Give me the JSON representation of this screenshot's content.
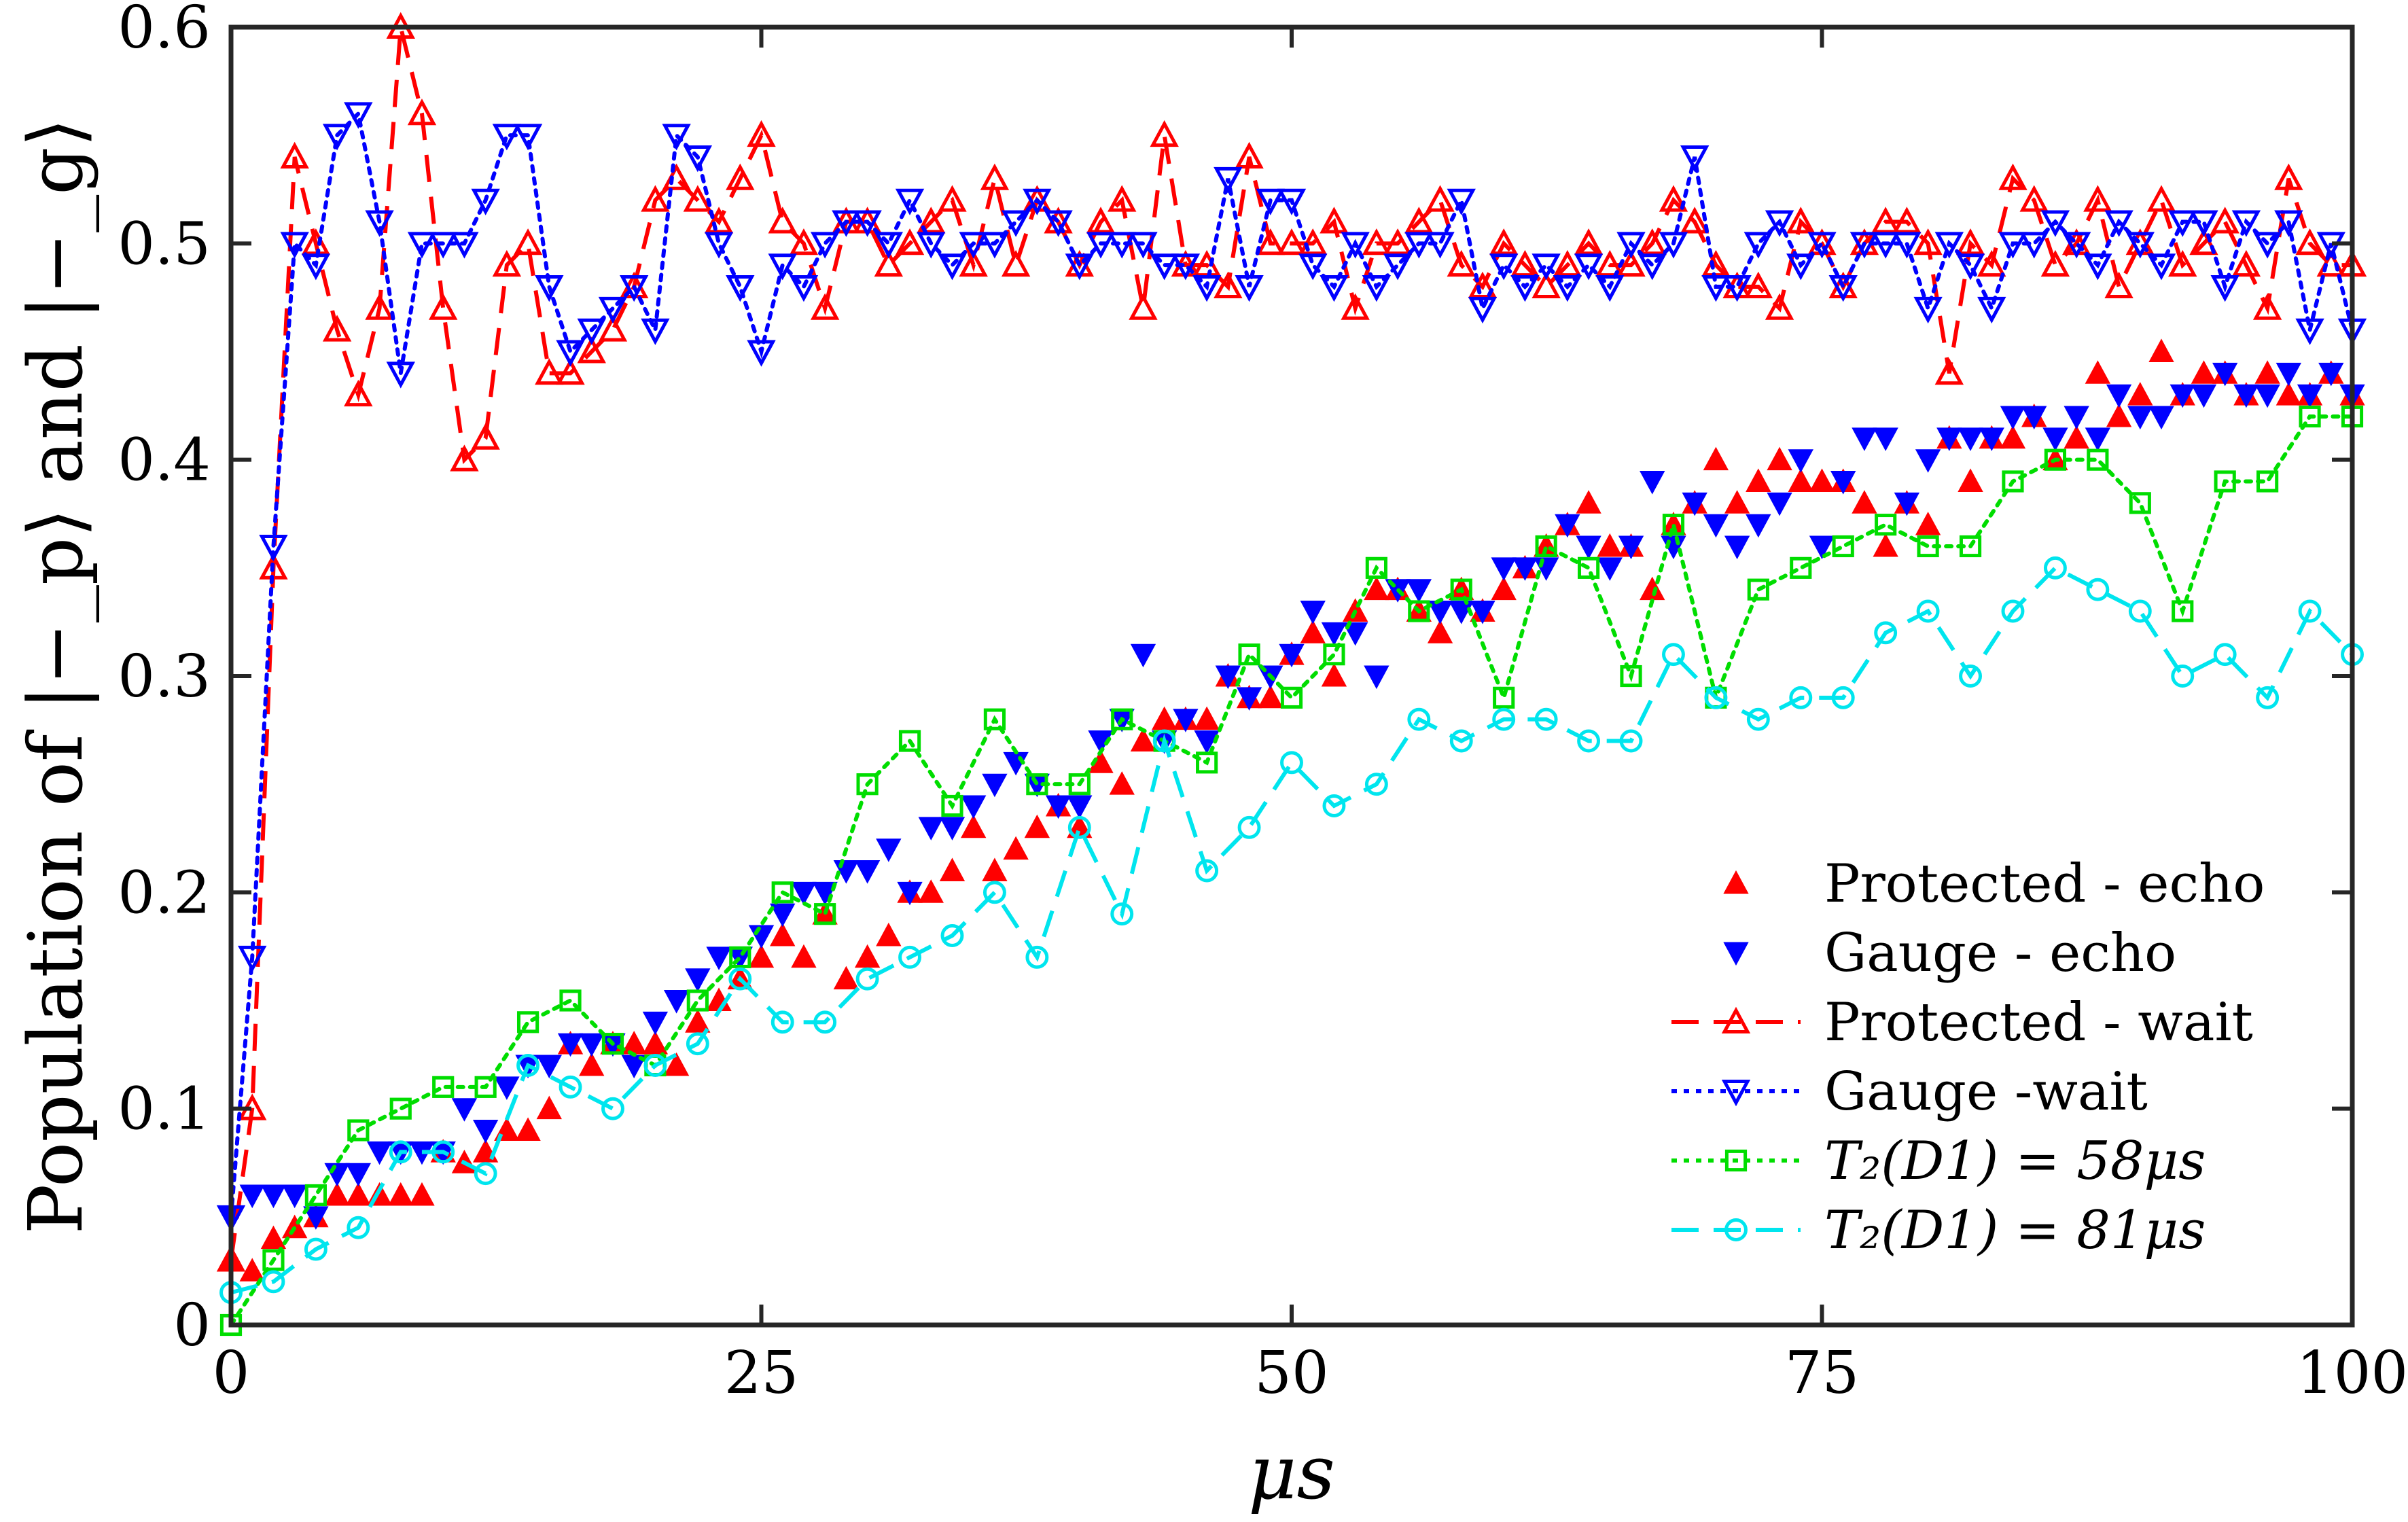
{
  "chart_data": {
    "type": "scatter",
    "xlabel": "μs",
    "ylabel": "Population of |−_p⟩ and |−_g⟩",
    "xlim": [
      0,
      100
    ],
    "ylim": [
      0,
      0.6
    ],
    "xticks": [
      0,
      25,
      50,
      75,
      100
    ],
    "xtick_labels": [
      "0",
      "25",
      "50",
      "75",
      "100"
    ],
    "yticks": [
      0,
      0.1,
      0.2,
      0.3,
      0.4,
      0.5,
      0.6
    ],
    "ytick_labels": [
      "0",
      "0.1",
      "0.2",
      "0.3",
      "0.4",
      "0.5",
      "0.6"
    ],
    "grid": false,
    "legend_position": "bottom-right",
    "series": [
      {
        "name": "Protected - echo",
        "color": "#ff0000",
        "marker": "triangle-up-filled",
        "line": "none",
        "x": [
          0,
          1,
          2,
          3,
          4,
          5,
          6,
          7,
          8,
          9,
          10,
          11,
          12,
          13,
          14,
          15,
          16,
          17,
          18,
          19,
          20,
          21,
          22,
          23,
          24,
          25,
          26,
          27,
          28,
          29,
          30,
          31,
          32,
          33,
          34,
          35,
          36,
          37,
          38,
          39,
          40,
          41,
          42,
          43,
          44,
          45,
          46,
          47,
          48,
          49,
          50,
          51,
          52,
          53,
          54,
          55,
          56,
          57,
          58,
          59,
          60,
          61,
          62,
          63,
          64,
          65,
          66,
          67,
          68,
          69,
          70,
          71,
          72,
          73,
          74,
          75,
          76,
          77,
          78,
          79,
          80,
          81,
          82,
          83,
          84,
          85,
          86,
          87,
          88,
          89,
          90,
          91,
          92,
          93,
          94,
          95,
          96,
          97,
          98,
          99,
          100
        ],
        "y": [
          0.03,
          0.025,
          0.04,
          0.045,
          0.05,
          0.06,
          0.06,
          0.06,
          0.06,
          0.06,
          0.08,
          0.075,
          0.08,
          0.09,
          0.09,
          0.1,
          0.13,
          0.12,
          0.13,
          0.13,
          0.13,
          0.12,
          0.14,
          0.15,
          0.16,
          0.17,
          0.18,
          0.17,
          0.19,
          0.16,
          0.17,
          0.18,
          0.2,
          0.2,
          0.21,
          0.23,
          0.21,
          0.22,
          0.23,
          0.24,
          0.23,
          0.26,
          0.25,
          0.27,
          0.28,
          0.28,
          0.28,
          0.3,
          0.29,
          0.29,
          0.31,
          0.32,
          0.3,
          0.33,
          0.34,
          0.34,
          0.33,
          0.32,
          0.34,
          0.33,
          0.34,
          0.35,
          0.36,
          0.37,
          0.38,
          0.36,
          0.36,
          0.34,
          0.37,
          0.38,
          0.4,
          0.38,
          0.39,
          0.4,
          0.39,
          0.39,
          0.39,
          0.38,
          0.36,
          0.38,
          0.37,
          0.41,
          0.39,
          0.41,
          0.41,
          0.42,
          0.4,
          0.41,
          0.44,
          0.42,
          0.43,
          0.45,
          0.43,
          0.44,
          0.44,
          0.43,
          0.44,
          0.43,
          0.43,
          0.44,
          0.43
        ]
      },
      {
        "name": "Gauge - echo",
        "color": "#0000ff",
        "marker": "triangle-down-filled",
        "line": "none",
        "x": [
          0,
          1,
          2,
          3,
          4,
          5,
          6,
          7,
          8,
          9,
          10,
          11,
          12,
          13,
          14,
          15,
          16,
          17,
          18,
          19,
          20,
          21,
          22,
          23,
          24,
          25,
          26,
          27,
          28,
          29,
          30,
          31,
          32,
          33,
          34,
          35,
          36,
          37,
          38,
          39,
          40,
          41,
          42,
          43,
          44,
          45,
          46,
          47,
          48,
          49,
          50,
          51,
          52,
          53,
          54,
          55,
          56,
          57,
          58,
          59,
          60,
          61,
          62,
          63,
          64,
          65,
          66,
          67,
          68,
          69,
          70,
          71,
          72,
          73,
          74,
          75,
          76,
          77,
          78,
          79,
          80,
          81,
          82,
          83,
          84,
          85,
          86,
          87,
          88,
          89,
          90,
          91,
          92,
          93,
          94,
          95,
          96,
          97,
          98,
          99,
          100
        ],
        "y": [
          0.05,
          0.06,
          0.06,
          0.06,
          0.05,
          0.07,
          0.07,
          0.08,
          0.08,
          0.08,
          0.08,
          0.1,
          0.09,
          0.11,
          0.12,
          0.12,
          0.13,
          0.13,
          0.13,
          0.12,
          0.14,
          0.15,
          0.16,
          0.17,
          0.17,
          0.18,
          0.19,
          0.2,
          0.2,
          0.21,
          0.21,
          0.22,
          0.2,
          0.23,
          0.23,
          0.24,
          0.25,
          0.26,
          0.25,
          0.24,
          0.24,
          0.27,
          0.28,
          0.31,
          0.27,
          0.28,
          0.27,
          0.3,
          0.29,
          0.3,
          0.31,
          0.33,
          0.32,
          0.32,
          0.3,
          0.34,
          0.34,
          0.33,
          0.33,
          0.33,
          0.35,
          0.35,
          0.35,
          0.37,
          0.36,
          0.35,
          0.36,
          0.39,
          0.36,
          0.38,
          0.37,
          0.36,
          0.37,
          0.38,
          0.4,
          0.36,
          0.39,
          0.41,
          0.41,
          0.38,
          0.4,
          0.41,
          0.41,
          0.41,
          0.42,
          0.42,
          0.41,
          0.42,
          0.41,
          0.43,
          0.42,
          0.42,
          0.43,
          0.43,
          0.44,
          0.43,
          0.43,
          0.44,
          0.43,
          0.44,
          0.43
        ]
      },
      {
        "name": "Protected - wait",
        "color": "#ff0000",
        "marker": "triangle-up-open",
        "line": "dashed",
        "x": [
          0,
          1,
          2,
          3,
          4,
          5,
          6,
          7,
          8,
          9,
          10,
          11,
          12,
          13,
          14,
          15,
          16,
          17,
          18,
          19,
          20,
          21,
          22,
          23,
          24,
          25,
          26,
          27,
          28,
          29,
          30,
          31,
          32,
          33,
          34,
          35,
          36,
          37,
          38,
          39,
          40,
          41,
          42,
          43,
          44,
          45,
          46,
          47,
          48,
          49,
          50,
          51,
          52,
          53,
          54,
          55,
          56,
          57,
          58,
          59,
          60,
          61,
          62,
          63,
          64,
          65,
          66,
          67,
          68,
          69,
          70,
          71,
          72,
          73,
          74,
          75,
          76,
          77,
          78,
          79,
          80,
          81,
          82,
          83,
          84,
          85,
          86,
          87,
          88,
          89,
          90,
          91,
          92,
          93,
          94,
          95,
          96,
          97,
          98,
          99,
          100
        ],
        "y": [
          0.03,
          0.1,
          0.35,
          0.54,
          0.5,
          0.46,
          0.43,
          0.47,
          0.6,
          0.56,
          0.47,
          0.4,
          0.41,
          0.49,
          0.5,
          0.44,
          0.44,
          0.45,
          0.46,
          0.48,
          0.52,
          0.53,
          0.52,
          0.51,
          0.53,
          0.55,
          0.51,
          0.5,
          0.47,
          0.51,
          0.51,
          0.49,
          0.5,
          0.51,
          0.52,
          0.49,
          0.53,
          0.49,
          0.52,
          0.51,
          0.49,
          0.51,
          0.52,
          0.47,
          0.55,
          0.49,
          0.49,
          0.48,
          0.54,
          0.5,
          0.5,
          0.5,
          0.51,
          0.47,
          0.5,
          0.5,
          0.51,
          0.52,
          0.49,
          0.48,
          0.5,
          0.49,
          0.48,
          0.49,
          0.5,
          0.49,
          0.49,
          0.5,
          0.52,
          0.51,
          0.49,
          0.48,
          0.48,
          0.47,
          0.51,
          0.5,
          0.48,
          0.5,
          0.51,
          0.51,
          0.5,
          0.44,
          0.5,
          0.49,
          0.53,
          0.52,
          0.49,
          0.5,
          0.52,
          0.48,
          0.5,
          0.52,
          0.49,
          0.5,
          0.51,
          0.49,
          0.47,
          0.53,
          0.5,
          0.49,
          0.49
        ]
      },
      {
        "name": "Gauge -wait",
        "color": "#0000ff",
        "marker": "triangle-down-open",
        "line": "dotted",
        "x": [
          0,
          1,
          2,
          3,
          4,
          5,
          6,
          7,
          8,
          9,
          10,
          11,
          12,
          13,
          14,
          15,
          16,
          17,
          18,
          19,
          20,
          21,
          22,
          23,
          24,
          25,
          26,
          27,
          28,
          29,
          30,
          31,
          32,
          33,
          34,
          35,
          36,
          37,
          38,
          39,
          40,
          41,
          42,
          43,
          44,
          45,
          46,
          47,
          48,
          49,
          50,
          51,
          52,
          53,
          54,
          55,
          56,
          57,
          58,
          59,
          60,
          61,
          62,
          63,
          64,
          65,
          66,
          67,
          68,
          69,
          70,
          71,
          72,
          73,
          74,
          75,
          76,
          77,
          78,
          79,
          80,
          81,
          82,
          83,
          84,
          85,
          86,
          87,
          88,
          89,
          90,
          91,
          92,
          93,
          94,
          95,
          96,
          97,
          98,
          99,
          100
        ],
        "y": [
          0.05,
          0.17,
          0.36,
          0.5,
          0.49,
          0.55,
          0.56,
          0.51,
          0.44,
          0.5,
          0.5,
          0.5,
          0.52,
          0.55,
          0.55,
          0.48,
          0.45,
          0.46,
          0.47,
          0.48,
          0.46,
          0.55,
          0.54,
          0.5,
          0.48,
          0.45,
          0.49,
          0.48,
          0.5,
          0.51,
          0.51,
          0.5,
          0.52,
          0.5,
          0.49,
          0.5,
          0.5,
          0.51,
          0.52,
          0.51,
          0.49,
          0.5,
          0.5,
          0.5,
          0.49,
          0.49,
          0.48,
          0.53,
          0.48,
          0.52,
          0.52,
          0.49,
          0.48,
          0.5,
          0.48,
          0.49,
          0.5,
          0.5,
          0.52,
          0.47,
          0.49,
          0.48,
          0.49,
          0.48,
          0.49,
          0.48,
          0.5,
          0.49,
          0.5,
          0.54,
          0.48,
          0.48,
          0.5,
          0.51,
          0.49,
          0.5,
          0.48,
          0.5,
          0.5,
          0.5,
          0.47,
          0.5,
          0.49,
          0.47,
          0.5,
          0.5,
          0.51,
          0.5,
          0.49,
          0.51,
          0.5,
          0.49,
          0.51,
          0.51,
          0.48,
          0.51,
          0.5,
          0.51,
          0.46,
          0.5,
          0.46
        ]
      },
      {
        "name": "T₂(D1) = 58μs",
        "color": "#00dd00",
        "marker": "square-open",
        "line": "dotted",
        "x": [
          0,
          2,
          4,
          6,
          8,
          10,
          12,
          14,
          16,
          18,
          20,
          22,
          24,
          26,
          28,
          30,
          32,
          34,
          36,
          38,
          40,
          42,
          44,
          46,
          48,
          50,
          52,
          54,
          56,
          58,
          60,
          62,
          64,
          66,
          68,
          70,
          72,
          74,
          76,
          78,
          80,
          82,
          84,
          86,
          88,
          90,
          92,
          94,
          96,
          98,
          100
        ],
        "y": [
          0.0,
          0.03,
          0.06,
          0.09,
          0.1,
          0.11,
          0.11,
          0.14,
          0.15,
          0.13,
          0.12,
          0.15,
          0.17,
          0.2,
          0.19,
          0.25,
          0.27,
          0.24,
          0.28,
          0.25,
          0.25,
          0.28,
          0.27,
          0.26,
          0.31,
          0.29,
          0.31,
          0.35,
          0.33,
          0.34,
          0.29,
          0.36,
          0.35,
          0.3,
          0.37,
          0.29,
          0.34,
          0.35,
          0.36,
          0.37,
          0.36,
          0.36,
          0.39,
          0.4,
          0.4,
          0.38,
          0.33,
          0.39,
          0.39,
          0.42,
          0.42
        ]
      },
      {
        "name": "T₂(D1) = 81μs",
        "color": "#00e5ee",
        "marker": "circle-open",
        "line": "dashed",
        "x": [
          0,
          2,
          4,
          6,
          8,
          10,
          12,
          14,
          16,
          18,
          20,
          22,
          24,
          26,
          28,
          30,
          32,
          34,
          36,
          38,
          40,
          42,
          44,
          46,
          48,
          50,
          52,
          54,
          56,
          58,
          60,
          62,
          64,
          66,
          68,
          70,
          72,
          74,
          76,
          78,
          80,
          82,
          84,
          86,
          88,
          90,
          92,
          94,
          96,
          98,
          100
        ],
        "y": [
          0.015,
          0.02,
          0.035,
          0.045,
          0.08,
          0.08,
          0.07,
          0.12,
          0.11,
          0.1,
          0.12,
          0.13,
          0.16,
          0.14,
          0.14,
          0.16,
          0.17,
          0.18,
          0.2,
          0.17,
          0.23,
          0.19,
          0.27,
          0.21,
          0.23,
          0.26,
          0.24,
          0.25,
          0.28,
          0.27,
          0.28,
          0.28,
          0.27,
          0.27,
          0.31,
          0.29,
          0.28,
          0.29,
          0.29,
          0.32,
          0.33,
          0.3,
          0.33,
          0.35,
          0.34,
          0.33,
          0.3,
          0.31,
          0.29,
          0.33,
          0.31
        ]
      }
    ],
    "legend": [
      "Protected - echo",
      "Gauge - echo",
      "Protected - wait",
      "Gauge -wait",
      "T₂(D1) = 58μs",
      "T₂(D1) = 81μs"
    ]
  }
}
